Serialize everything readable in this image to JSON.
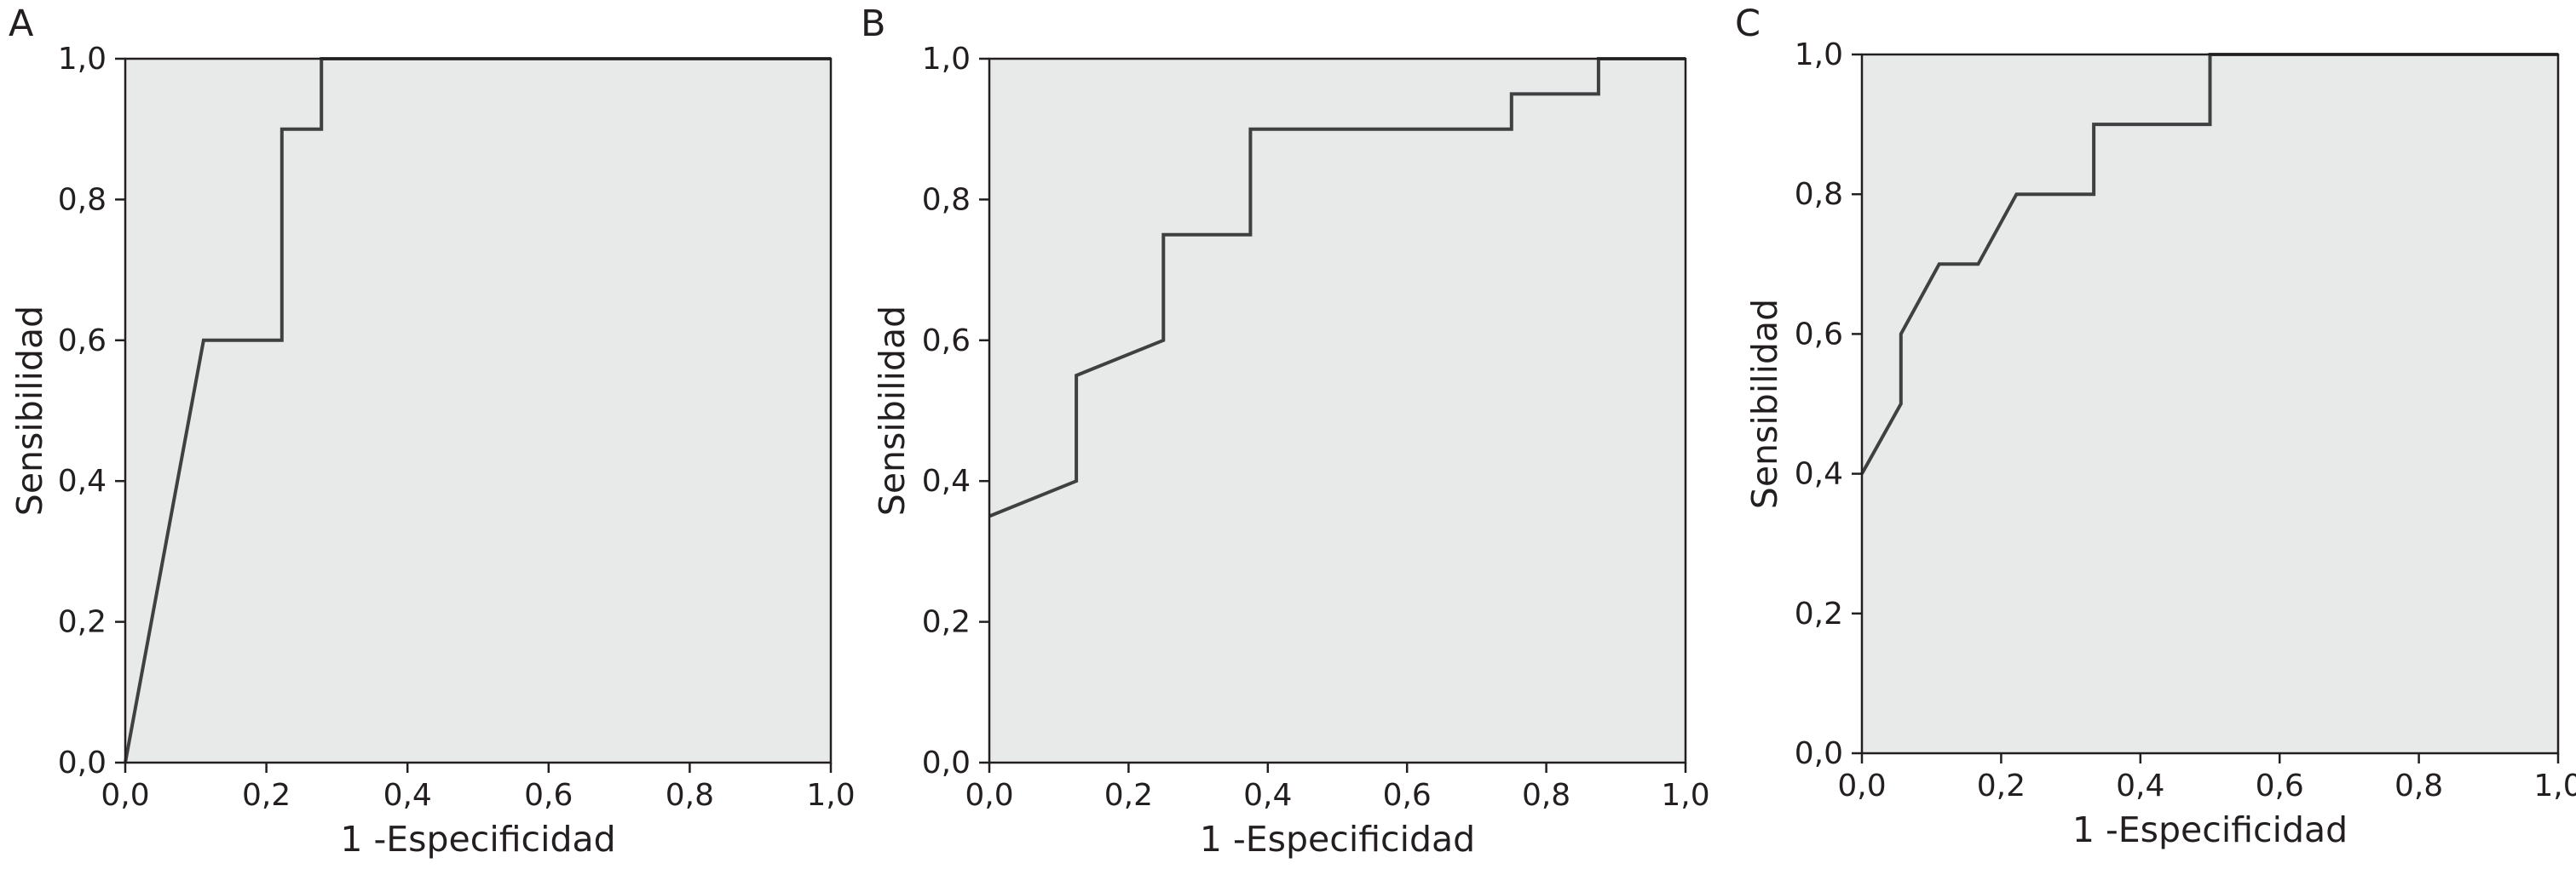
{
  "panels": [
    {
      "letter": "A",
      "xlabel": "1 -Especificidad",
      "ylabel": "Sensibilidad",
      "ticks": [
        "0,0",
        "0,2",
        "0,4",
        "0,6",
        "0,8",
        "1,0"
      ]
    },
    {
      "letter": "B",
      "xlabel": "1 -Especificidad",
      "ylabel": "Sensibilidad",
      "ticks": [
        "0,0",
        "0,2",
        "0,4",
        "0,6",
        "0,8",
        "1,0"
      ]
    },
    {
      "letter": "C",
      "xlabel": "1 -Especificidad",
      "ylabel": "Sensibilidad",
      "ticks": [
        "0,0",
        "0,2",
        "0,4",
        "0,6",
        "0,8",
        "1,0"
      ]
    }
  ],
  "chart_data": [
    {
      "type": "line",
      "title": "",
      "panel": "A",
      "xlabel": "1 -Especificidad",
      "ylabel": "Sensibilidad",
      "xlim": [
        0,
        1
      ],
      "ylim": [
        0,
        1
      ],
      "grid": false,
      "x": [
        0.0,
        0.111,
        0.222,
        0.222,
        0.278,
        0.278,
        1.0
      ],
      "y": [
        0.0,
        0.6,
        0.6,
        0.9,
        0.9,
        1.0,
        1.0
      ]
    },
    {
      "type": "line",
      "title": "",
      "panel": "B",
      "xlabel": "1 -Especificidad",
      "ylabel": "Sensibilidad",
      "xlim": [
        0,
        1
      ],
      "ylim": [
        0,
        1
      ],
      "grid": false,
      "x": [
        0.0,
        0.125,
        0.125,
        0.125,
        0.25,
        0.25,
        0.375,
        0.375,
        0.75,
        0.75,
        0.875,
        0.875,
        1.0
      ],
      "y": [
        0.35,
        0.4,
        0.4,
        0.55,
        0.6,
        0.75,
        0.75,
        0.9,
        0.9,
        0.95,
        0.95,
        1.0,
        1.0
      ]
    },
    {
      "type": "line",
      "title": "",
      "panel": "C",
      "xlabel": "1 -Especificidad",
      "ylabel": "Sensibilidad",
      "xlim": [
        0,
        1
      ],
      "ylim": [
        0,
        1
      ],
      "grid": false,
      "x": [
        0.0,
        0.056,
        0.056,
        0.111,
        0.167,
        0.222,
        0.333,
        0.333,
        0.5,
        0.5,
        1.0
      ],
      "y": [
        0.4,
        0.5,
        0.6,
        0.7,
        0.7,
        0.8,
        0.8,
        0.9,
        0.9,
        1.0,
        1.0
      ]
    }
  ]
}
